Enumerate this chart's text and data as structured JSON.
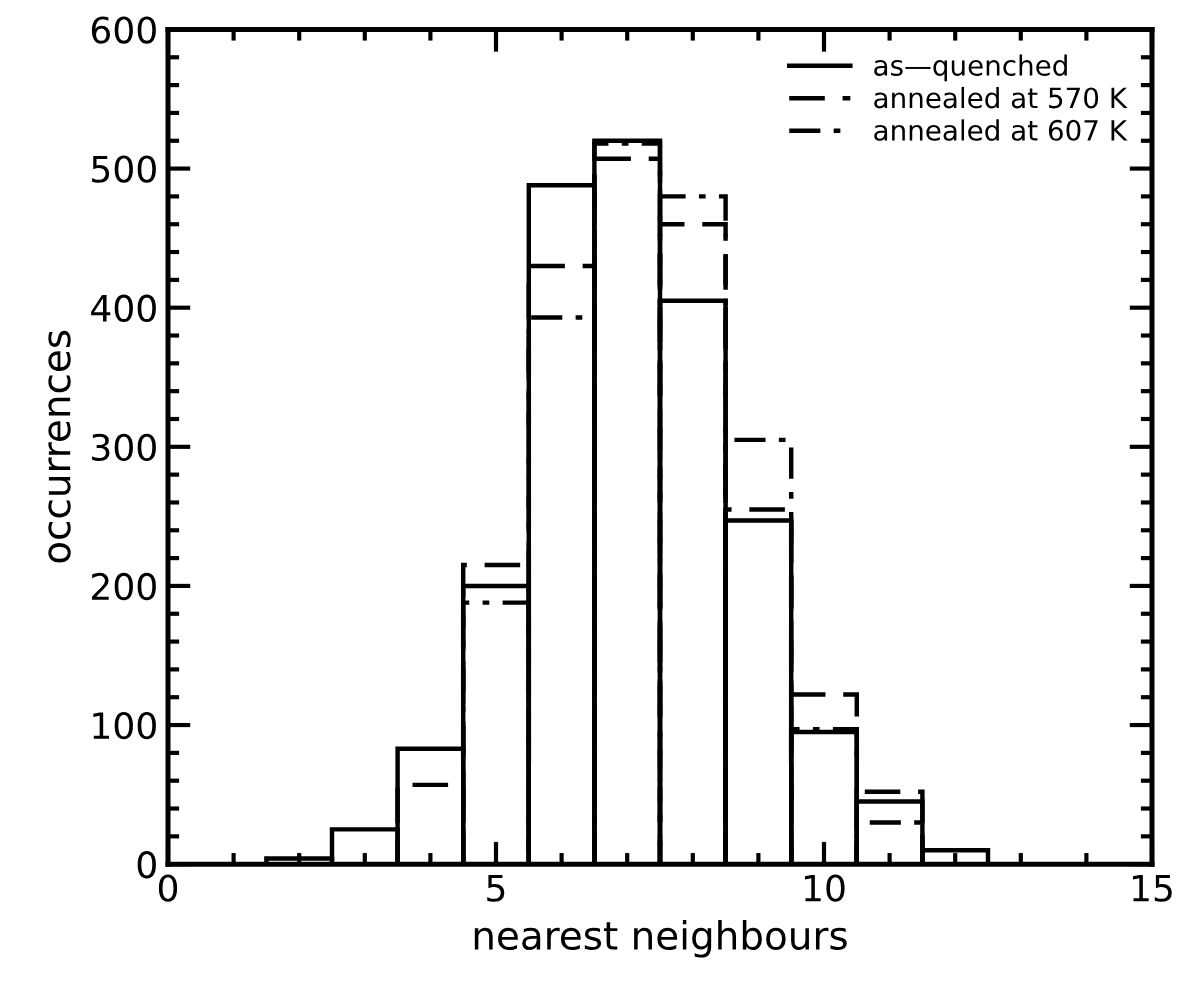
{
  "chart_data": {
    "type": "histogram",
    "xlabel": "nearest neighbours",
    "ylabel": "occurrences",
    "bins": [
      1.5,
      2.5,
      3.5,
      4.5,
      5.5,
      6.5,
      7.5,
      8.5,
      9.5,
      10.5,
      11.5,
      12.5
    ],
    "series": [
      {
        "name": "as—quenched",
        "color": "#000000",
        "line_style": "solid",
        "values": [
          4,
          25,
          83,
          200,
          488,
          520,
          405,
          247,
          95,
          45,
          10
        ]
      },
      {
        "name": "annealed at 570 K",
        "color": "#000000",
        "line_style": "dashed",
        "values": [
          null,
          null,
          57,
          215,
          430,
          507,
          460,
          255,
          122,
          52,
          null
        ]
      },
      {
        "name": "annealed at 607 K",
        "color": "#000000",
        "line_style": "dashdot",
        "values": [
          null,
          null,
          null,
          188,
          393,
          518,
          480,
          305,
          97,
          30,
          null
        ]
      }
    ],
    "xlim": [
      0,
      15
    ],
    "xticks": [
      0,
      5,
      10,
      15
    ],
    "ylim": [
      0,
      600
    ],
    "yticks": [
      0,
      100,
      200,
      300,
      400,
      500,
      600
    ],
    "grid": false,
    "legend": "top right"
  }
}
